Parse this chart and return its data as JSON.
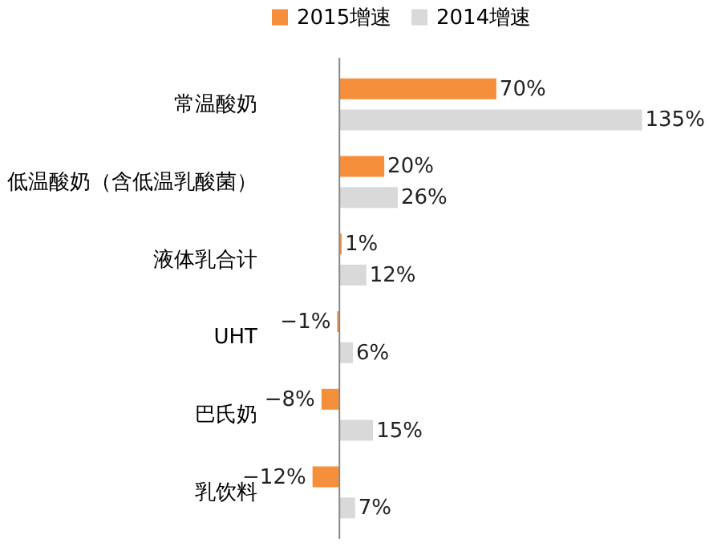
{
  "chart_data": {
    "type": "bar",
    "orientation": "horizontal",
    "categories": [
      "常温酸奶",
      "低温酸奶（含低温乳酸菌）",
      "液体乳合计",
      "UHT",
      "巴氏奶",
      "乳饮料"
    ],
    "series": [
      {
        "name": "2015增速",
        "color": "#f58f3b",
        "values": [
          70,
          20,
          1,
          -1,
          -8,
          -12
        ],
        "value_labels": [
          "70%",
          "20%",
          "1%",
          "−1%",
          "−8%",
          "−12%"
        ]
      },
      {
        "name": "2014增速",
        "color": "#d9d9d9",
        "values": [
          135,
          26,
          12,
          6,
          15,
          7
        ],
        "value_labels": [
          "135%",
          "26%",
          "12%",
          "6%",
          "15%",
          "7%"
        ]
      }
    ],
    "legend": "top",
    "tick_labels": "y"
  }
}
